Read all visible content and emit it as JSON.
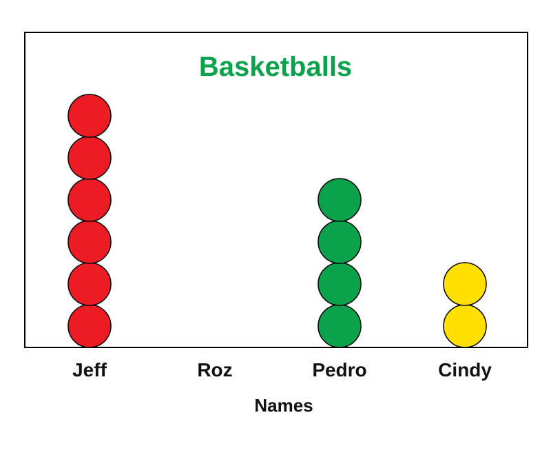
{
  "chart_data": {
    "type": "pictograph",
    "title": "Basketballs",
    "xlabel": "Names",
    "ylabel": "",
    "categories": [
      "Jeff",
      "Roz",
      "Pedro",
      "Cindy"
    ],
    "values": [
      6,
      0,
      4,
      2
    ],
    "colors": [
      "#ed1c24",
      "#ed1c24",
      "#0aa24b",
      "#ffe000"
    ],
    "title_color": "#0aa24b",
    "border_color": "#000000",
    "grid": false,
    "legend": "none"
  }
}
